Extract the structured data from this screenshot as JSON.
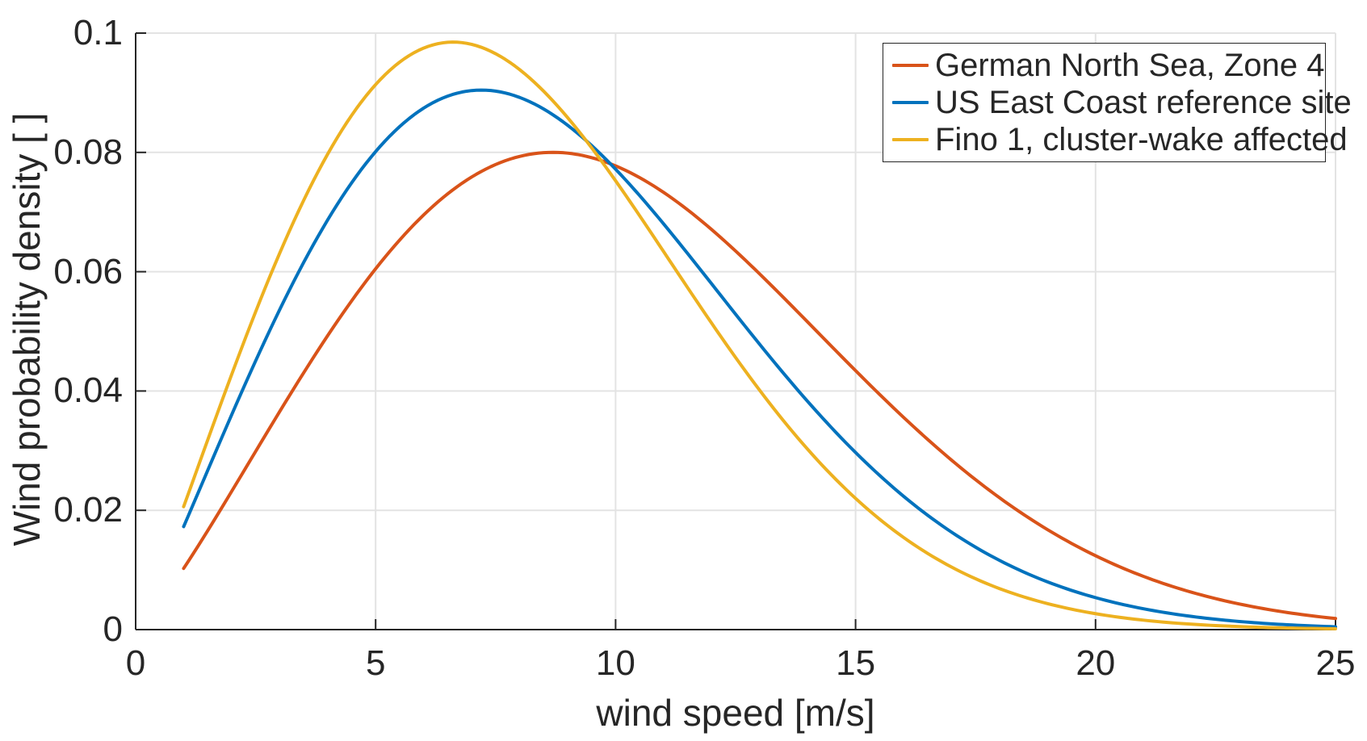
{
  "chart_data": {
    "type": "line",
    "title": "",
    "xlabel": "wind speed [m/s]",
    "ylabel": "Wind probability density [ ]",
    "xlim": [
      0,
      25
    ],
    "ylim": [
      0,
      0.1
    ],
    "xticks": [
      0,
      5,
      10,
      15,
      20,
      25
    ],
    "xtick_labels": [
      "0",
      "5",
      "10",
      "15",
      "20",
      "25"
    ],
    "yticks": [
      0,
      0.02,
      0.04,
      0.06,
      0.08,
      0.1
    ],
    "ytick_labels": [
      "0",
      "0.02",
      "0.04",
      "0.06",
      "0.08",
      "0.1"
    ],
    "grid": true,
    "box": false,
    "legend_position": "top-right",
    "axis_color": "#262626",
    "grid_color": "#e3e3e3",
    "background": "#ffffff",
    "curve_line_width": 4,
    "data_x_start": 1,
    "data_x_end": 25,
    "series": [
      {
        "name": "German North Sea, Zone 4",
        "color": "#D95319",
        "distribution": "weibull_pdf",
        "shape_k": 2.2,
        "scale_lambda": 11.45,
        "peak": {
          "x": 8.7,
          "y": 0.08
        },
        "sampled_points": {
          "x": [
            1,
            5,
            10,
            15,
            20,
            25
          ],
          "y": [
            0.0103,
            0.0605,
            0.0777,
            0.0434,
            0.0124,
            0.0019
          ]
        }
      },
      {
        "name": "US East Coast reference site",
        "color": "#0072BD",
        "distribution": "weibull_pdf",
        "shape_k": 2.1,
        "scale_lambda": 9.8,
        "peak": {
          "x": 7.2,
          "y": 0.091
        },
        "sampled_points": {
          "x": [
            1,
            5,
            10,
            15,
            20,
            25
          ],
          "y": [
            0.017,
            0.0801,
            0.078,
            0.029,
            0.005,
            0.0005
          ]
        }
      },
      {
        "name": "Fino 1, cluster-wake affected",
        "color": "#EDB120",
        "distribution": "weibull_pdf",
        "shape_k": 2.1,
        "scale_lambda": 9.0,
        "peak": {
          "x": 6.5,
          "y": 0.098
        },
        "sampled_points": {
          "x": [
            1,
            5,
            10,
            15,
            20,
            25
          ],
          "y": [
            0.0215,
            0.093,
            0.076,
            0.022,
            0.0027,
            0.0001
          ]
        }
      }
    ]
  }
}
